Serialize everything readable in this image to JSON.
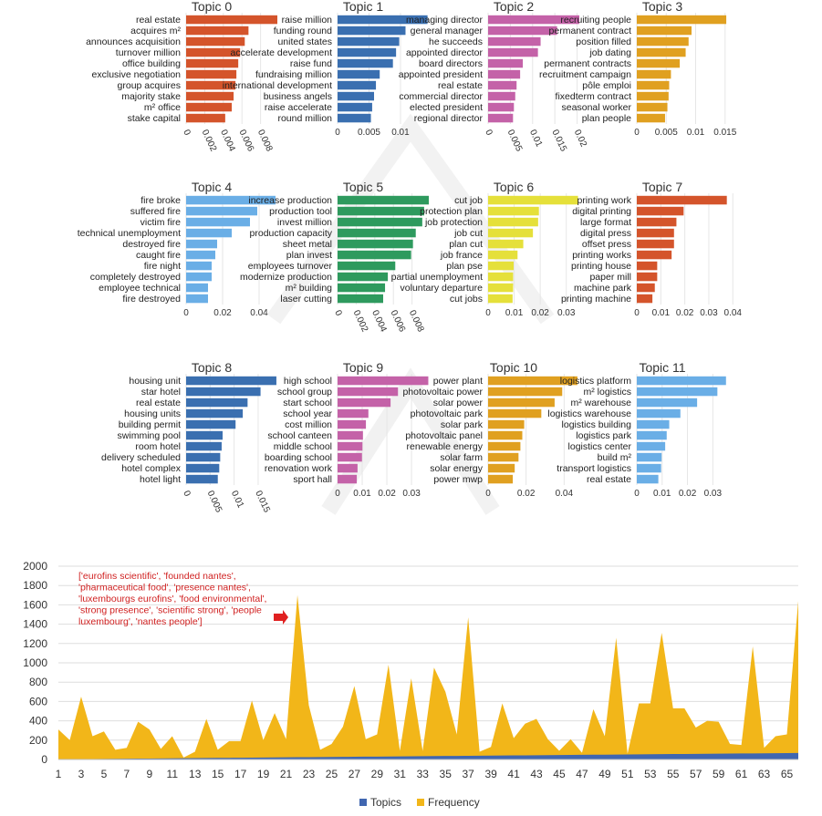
{
  "chart_data": [
    {
      "type": "bar",
      "orientation": "horizontal",
      "title": "Topic 0",
      "color": "#d4542b",
      "categories": [
        "real estate",
        "acquires m²",
        "announces acquisition",
        "turnover million",
        "office building",
        "exclusive negotiation",
        "group acquires",
        "majority stake",
        "m² office",
        "stake capital"
      ],
      "values": [
        0.0098,
        0.0067,
        0.0063,
        0.0058,
        0.0056,
        0.0054,
        0.0053,
        0.0051,
        0.0049,
        0.0042
      ],
      "xlim": [
        0,
        0.0098
      ],
      "ticks": [
        "0",
        "0.002",
        "0.004",
        "0.006",
        "0.008"
      ],
      "tick_values": [
        0,
        0.002,
        0.004,
        0.006,
        0.008
      ],
      "tick_rotate": true
    },
    {
      "type": "bar",
      "orientation": "horizontal",
      "title": "Topic 1",
      "color": "#3a6fb0",
      "categories": [
        "raise million",
        "funding round",
        "united states",
        "accelerate development",
        "raise fund",
        "fundraising million",
        "international development",
        "business angels",
        "raise accelerate",
        "round million"
      ],
      "values": [
        0.0143,
        0.0108,
        0.0098,
        0.0093,
        0.0088,
        0.0067,
        0.0061,
        0.0058,
        0.0055,
        0.0053
      ],
      "xlim": [
        0,
        0.0145
      ],
      "ticks": [
        "0",
        "0.005",
        "0.01"
      ],
      "tick_values": [
        0,
        0.005,
        0.01
      ],
      "tick_rotate": false
    },
    {
      "type": "bar",
      "orientation": "horizontal",
      "title": "Topic 2",
      "color": "#c462a8",
      "categories": [
        "managing director",
        "general manager",
        "he succeeds",
        "appointed director",
        "board directors",
        "appointed president",
        "real estate",
        "commercial director",
        "elected president",
        "regional director"
      ],
      "values": [
        0.0205,
        0.0155,
        0.0118,
        0.0112,
        0.0078,
        0.0072,
        0.0064,
        0.0061,
        0.0058,
        0.0056
      ],
      "xlim": [
        0,
        0.0205
      ],
      "ticks": [
        "0",
        "0.005",
        "0.01",
        "0.015",
        "0.02"
      ],
      "tick_values": [
        0,
        0.005,
        0.01,
        0.015,
        0.02
      ],
      "tick_rotate": true
    },
    {
      "type": "bar",
      "orientation": "horizontal",
      "title": "Topic 3",
      "color": "#e0a020",
      "categories": [
        "recruiting people",
        "permanent contract",
        "position filled",
        "job dating",
        "permanent contracts",
        "recruitment campaign",
        "pôle emploi",
        "fixedterm contract",
        "seasonal worker",
        "plan people"
      ],
      "values": [
        0.0152,
        0.0093,
        0.0088,
        0.0083,
        0.0073,
        0.0058,
        0.0055,
        0.0054,
        0.0052,
        0.0048
      ],
      "xlim": [
        0,
        0.0155
      ],
      "ticks": [
        "0",
        "0.005",
        "0.01",
        "0.015"
      ],
      "tick_values": [
        0,
        0.005,
        0.01,
        0.015
      ],
      "tick_rotate": false
    },
    {
      "type": "bar",
      "orientation": "horizontal",
      "title": "Topic 4",
      "color": "#6aaee6",
      "categories": [
        "fire broke",
        "suffered fire",
        "victim fire",
        "technical unemployment",
        "destroyed fire",
        "caught fire",
        "fire night",
        "completely destroyed",
        "employee technical",
        "fire destroyed"
      ],
      "values": [
        0.049,
        0.039,
        0.035,
        0.025,
        0.017,
        0.016,
        0.014,
        0.014,
        0.012,
        0.012
      ],
      "xlim": [
        0,
        0.05
      ],
      "ticks": [
        "0",
        "0.02",
        "0.04"
      ],
      "tick_values": [
        0,
        0.02,
        0.04
      ],
      "tick_rotate": false
    },
    {
      "type": "bar",
      "orientation": "horizontal",
      "title": "Topic 5",
      "color": "#2e9a5e",
      "categories": [
        "increase production",
        "production tool",
        "invest million",
        "production capacity",
        "sheet metal",
        "plan invest",
        "employees turnover",
        "modernize production",
        "m² building",
        "laser cutting"
      ],
      "values": [
        0.0098,
        0.0093,
        0.0091,
        0.0084,
        0.0081,
        0.0079,
        0.0062,
        0.0054,
        0.0051,
        0.0049
      ],
      "xlim": [
        0,
        0.0098
      ],
      "ticks": [
        "0",
        "0.002",
        "0.004",
        "0.006",
        "0.008"
      ],
      "tick_values": [
        0,
        0.002,
        0.004,
        0.006,
        0.008
      ],
      "tick_rotate": true
    },
    {
      "type": "bar",
      "orientation": "horizontal",
      "title": "Topic 6",
      "color": "#e5e03a",
      "categories": [
        "cut job",
        "protection plan",
        "job protection",
        "job cut",
        "plan cut",
        "job france",
        "plan pse",
        "partial unemployment",
        "voluntary departure",
        "cut jobs"
      ],
      "values": [
        0.0345,
        0.0195,
        0.0192,
        0.0172,
        0.0135,
        0.0113,
        0.0098,
        0.0096,
        0.0096,
        0.0094
      ],
      "xlim": [
        0,
        0.035
      ],
      "ticks": [
        "0",
        "0.01",
        "0.02",
        "0.03"
      ],
      "tick_values": [
        0,
        0.01,
        0.02,
        0.03
      ],
      "tick_rotate": false
    },
    {
      "type": "bar",
      "orientation": "horizontal",
      "title": "Topic 7",
      "color": "#d4542b",
      "categories": [
        "printing work",
        "digital printing",
        "large format",
        "digital press",
        "offset press",
        "printing works",
        "printing house",
        "paper mill",
        "machine park",
        "printing machine"
      ],
      "values": [
        0.0375,
        0.0195,
        0.0165,
        0.0155,
        0.0155,
        0.0145,
        0.0085,
        0.0085,
        0.0075,
        0.0065
      ],
      "xlim": [
        0,
        0.038
      ],
      "ticks": [
        "0",
        "0.01",
        "0.02",
        "0.03",
        "0.04"
      ],
      "tick_values": [
        0,
        0.01,
        0.02,
        0.03,
        0.04
      ],
      "tick_rotate": false
    },
    {
      "type": "bar",
      "orientation": "horizontal",
      "title": "Topic 8",
      "color": "#3a6fb0",
      "categories": [
        "housing unit",
        "star hotel",
        "real estate",
        "housing units",
        "building permit",
        "swimming pool",
        "room hotel",
        "delivery scheduled",
        "hotel complex",
        "hotel light"
      ],
      "values": [
        0.0188,
        0.0155,
        0.0128,
        0.0118,
        0.0103,
        0.0076,
        0.0074,
        0.0071,
        0.0069,
        0.0066
      ],
      "xlim": [
        0,
        0.019
      ],
      "ticks": [
        "0",
        "0.005",
        "0.01",
        "0.015"
      ],
      "tick_values": [
        0,
        0.005,
        0.01,
        0.015
      ],
      "tick_rotate": true
    },
    {
      "type": "bar",
      "orientation": "horizontal",
      "title": "Topic 9",
      "color": "#c462a8",
      "categories": [
        "high school",
        "school group",
        "start school",
        "school year",
        "cost million",
        "school canteen",
        "middle school",
        "boarding school",
        "renovation work",
        "sport hall"
      ],
      "values": [
        0.0368,
        0.0245,
        0.0215,
        0.0125,
        0.0115,
        0.0103,
        0.0101,
        0.0099,
        0.0081,
        0.0078
      ],
      "xlim": [
        0,
        0.037
      ],
      "ticks": [
        "0",
        "0.01",
        "0.02",
        "0.03"
      ],
      "tick_values": [
        0,
        0.01,
        0.02,
        0.03
      ],
      "tick_rotate": false
    },
    {
      "type": "bar",
      "orientation": "horizontal",
      "title": "Topic 10",
      "color": "#e0a020",
      "categories": [
        "power plant",
        "photovoltaic power",
        "solar power",
        "photovoltaic park",
        "solar park",
        "photovoltaic panel",
        "renewable energy",
        "solar farm",
        "solar energy",
        "power mwp"
      ],
      "values": [
        0.047,
        0.039,
        0.035,
        0.028,
        0.019,
        0.018,
        0.017,
        0.016,
        0.014,
        0.013
      ],
      "xlim": [
        0,
        0.048
      ],
      "ticks": [
        "0",
        "0.02",
        "0.04"
      ],
      "tick_values": [
        0,
        0.02,
        0.04
      ],
      "tick_rotate": false
    },
    {
      "type": "bar",
      "orientation": "horizontal",
      "title": "Topic 11",
      "color": "#6aaee6",
      "categories": [
        "logistics platform",
        "m² logistics",
        "m² warehouse",
        "logistics warehouse",
        "logistics building",
        "logistics park",
        "logistics center",
        "build m²",
        "transport logistics",
        "real estate"
      ],
      "values": [
        0.0352,
        0.0318,
        0.0238,
        0.0172,
        0.0128,
        0.0118,
        0.0112,
        0.0098,
        0.0096,
        0.0085
      ],
      "xlim": [
        0,
        0.036
      ],
      "ticks": [
        "0",
        "0.01",
        "0.02",
        "0.03"
      ],
      "tick_values": [
        0,
        0.01,
        0.02,
        0.03
      ],
      "tick_rotate": false
    },
    {
      "type": "area",
      "title": "",
      "x": [
        1,
        2,
        3,
        4,
        5,
        6,
        7,
        8,
        9,
        10,
        11,
        12,
        13,
        14,
        15,
        16,
        17,
        18,
        19,
        20,
        21,
        22,
        23,
        24,
        25,
        26,
        27,
        28,
        29,
        30,
        31,
        32,
        33,
        34,
        35,
        36,
        37,
        38,
        39,
        40,
        41,
        42,
        43,
        44,
        45,
        46,
        47,
        48,
        49,
        50,
        51,
        52,
        53,
        54,
        55,
        56,
        57,
        58,
        59,
        60,
        61,
        62,
        63,
        64,
        65,
        66
      ],
      "x_tick_labels": [
        "1",
        "3",
        "5",
        "7",
        "9",
        "11",
        "13",
        "15",
        "17",
        "19",
        "21",
        "23",
        "25",
        "27",
        "29",
        "31",
        "33",
        "35",
        "37",
        "39",
        "41",
        "43",
        "45",
        "47",
        "49",
        "51",
        "53",
        "55",
        "57",
        "59",
        "61",
        "63",
        "65"
      ],
      "ylim": [
        0,
        2000
      ],
      "y_ticks": [
        "0",
        "200",
        "400",
        "600",
        "800",
        "1000",
        "1200",
        "1400",
        "1600",
        "1800",
        "2000"
      ],
      "grid": true,
      "series": [
        {
          "name": "Topics",
          "color": "#4066b0",
          "values": [
            2,
            3,
            4,
            5,
            6,
            7,
            8,
            9,
            10,
            11,
            12,
            13,
            14,
            15,
            16,
            17,
            18,
            19,
            20,
            21,
            22,
            23,
            24,
            25,
            26,
            27,
            28,
            29,
            30,
            31,
            32,
            33,
            34,
            35,
            36,
            37,
            38,
            39,
            40,
            41,
            42,
            43,
            44,
            45,
            46,
            47,
            48,
            49,
            50,
            51,
            52,
            53,
            54,
            55,
            56,
            57,
            58,
            59,
            60,
            61,
            62,
            63,
            64,
            65,
            66,
            67
          ]
        },
        {
          "name": "Frequency",
          "color": "#f2b619",
          "values": [
            310,
            200,
            650,
            240,
            290,
            100,
            120,
            390,
            310,
            110,
            240,
            20,
            80,
            420,
            100,
            190,
            190,
            610,
            200,
            480,
            210,
            1700,
            560,
            100,
            160,
            340,
            760,
            210,
            260,
            980,
            90,
            840,
            90,
            950,
            700,
            260,
            1470,
            80,
            130,
            580,
            220,
            370,
            420,
            210,
            90,
            210,
            70,
            520,
            240,
            1260,
            60,
            580,
            580,
            1310,
            530,
            530,
            330,
            400,
            390,
            160,
            150,
            1170,
            120,
            240,
            260,
            1640
          ]
        }
      ],
      "legend_position": "bottom",
      "annotation": "['eurofins scientific', 'founded nantes', 'pharmaceutical food', 'presence nantes', 'luxembourgs eurofins', 'food environmental', 'strong presence', 'scientific strong', 'people luxembourg', 'nantes people']",
      "annotation_color": "#d02020",
      "annotation_x": 22
    }
  ]
}
